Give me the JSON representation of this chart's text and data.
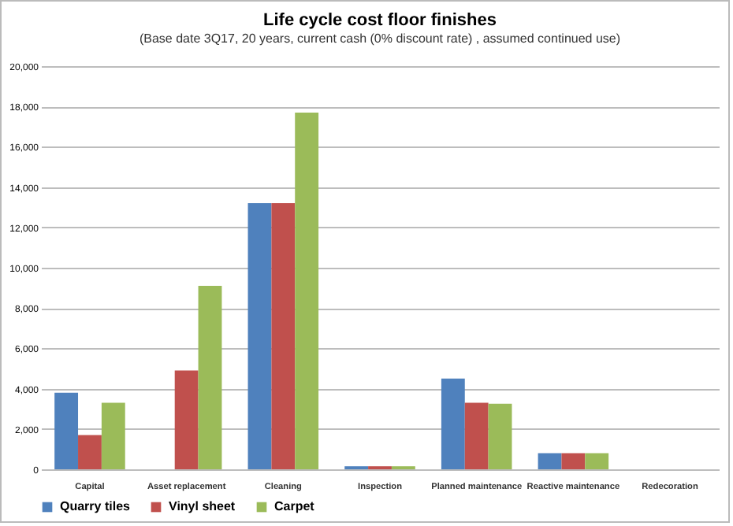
{
  "chart_data": {
    "type": "bar",
    "title": "Life cycle cost floor finishes",
    "subtitle": "(Base date 3Q17, 20 years, current cash (0% discount rate) , assumed continued use)",
    "categories": [
      "Capital",
      "Asset replacement",
      "Cleaning",
      "Inspection",
      "Planned maintenance",
      "Reactive maintenance",
      "Redecoration"
    ],
    "series": [
      {
        "name": "Quarry tiles",
        "color": "#4f81bd",
        "values": [
          3800,
          0,
          13200,
          150,
          4500,
          800,
          0
        ]
      },
      {
        "name": "Vinyl sheet",
        "color": "#c0504d",
        "values": [
          1700,
          4900,
          13200,
          150,
          3300,
          800,
          0
        ]
      },
      {
        "name": "Carpet",
        "color": "#9bbb59",
        "values": [
          3300,
          9100,
          17700,
          150,
          3250,
          800,
          0
        ]
      }
    ],
    "ylim": [
      0,
      20000
    ],
    "yticks": [
      0,
      {
        "value": 2000,
        "label": "2,000"
      },
      {
        "value": 4000,
        "label": "4,000"
      },
      {
        "value": 6000,
        "label": "6,000"
      },
      {
        "value": 8000,
        "label": "8,000"
      },
      {
        "value": 10000,
        "label": "10,000"
      },
      {
        "value": 12000,
        "label": "12,000"
      },
      {
        "value": 14000,
        "label": "14,000"
      },
      {
        "value": 16000,
        "label": "16,000"
      },
      {
        "value": 18000,
        "label": "18,000"
      },
      {
        "value": 20000,
        "label": "20,000"
      }
    ],
    "grid": "y",
    "legend": "bottom"
  }
}
